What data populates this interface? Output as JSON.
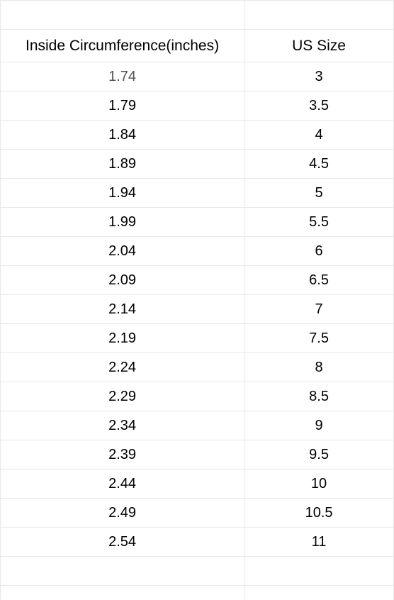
{
  "table": {
    "type": "table",
    "columns": [
      {
        "label": "Inside Circumference(inches)",
        "alignment": "center"
      },
      {
        "label": "US Size",
        "alignment": "center"
      }
    ],
    "rows": [
      [
        "1.74",
        "3"
      ],
      [
        "1.79",
        "3.5"
      ],
      [
        "1.84",
        "4"
      ],
      [
        "1.89",
        "4.5"
      ],
      [
        "1.94",
        "5"
      ],
      [
        "1.99",
        "5.5"
      ],
      [
        "2.04",
        "6"
      ],
      [
        "2.09",
        "6.5"
      ],
      [
        "2.14",
        "7"
      ],
      [
        "2.19",
        "7.5"
      ],
      [
        "2.24",
        "8"
      ],
      [
        "2.29",
        "8.5"
      ],
      [
        "2.34",
        "9"
      ],
      [
        "2.39",
        "9.5"
      ],
      [
        "2.44",
        "10"
      ],
      [
        "2.49",
        "10.5"
      ],
      [
        "2.54",
        "11"
      ]
    ],
    "background_color": "#ffffff",
    "border_color": "#e8e8e8",
    "text_color": "#000000",
    "first_row_text_color": "#555555",
    "font_size": 20,
    "header_font_size": 21,
    "col_widths_percent": [
      62,
      38
    ]
  }
}
